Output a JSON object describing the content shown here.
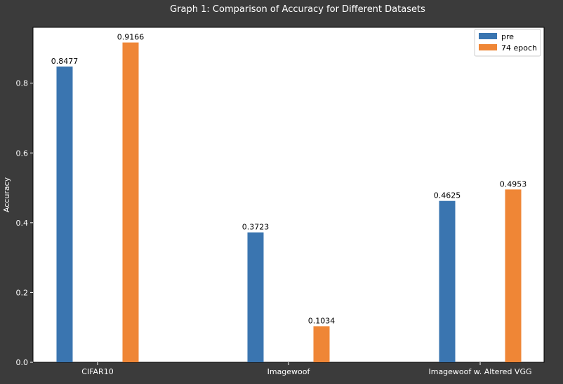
{
  "colors": {
    "figure_bg": "#3b3b3b",
    "axes_bg": "#ffffff",
    "text_light": "#ffffff",
    "text_dark": "#000000"
  },
  "chart_data": {
    "type": "bar",
    "title": "Graph 1: Comparison of Accuracy for Different Datasets",
    "xlabel": "",
    "ylabel": "Accuracy",
    "categories": [
      "CIFAR10",
      "Imagewoof",
      "Imagewoof w. Altered VGG"
    ],
    "series": [
      {
        "name": "pre",
        "color": "#3a75b0",
        "values": [
          0.8477,
          0.3723,
          0.4625
        ],
        "labels": [
          "0.8477",
          "0.3723",
          "0.4625"
        ]
      },
      {
        "name": "74 epoch",
        "color": "#ef8636",
        "values": [
          0.9166,
          0.1034,
          0.4953
        ],
        "labels": [
          "0.9166",
          "0.1034",
          "0.4953"
        ]
      }
    ],
    "ylim": [
      0,
      0.96
    ],
    "yticks": [
      0.0,
      0.2,
      0.4,
      0.6,
      0.8
    ],
    "ytick_labels": [
      "0.0",
      "0.2",
      "0.4",
      "0.6",
      "0.8"
    ],
    "grid": false,
    "legend_position": "top-right"
  }
}
